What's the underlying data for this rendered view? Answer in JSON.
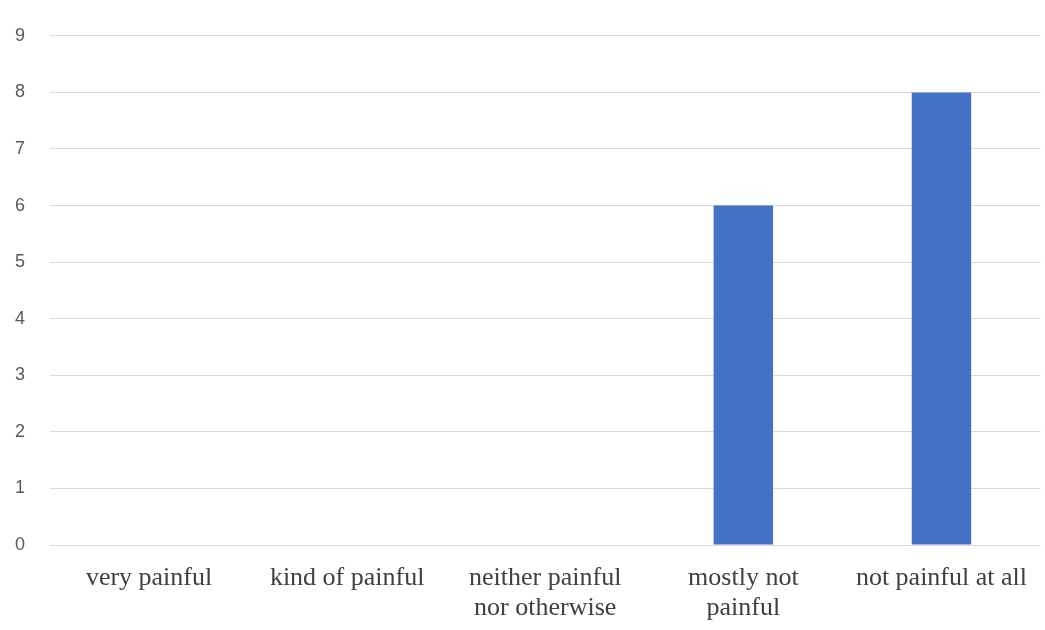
{
  "chart_data": {
    "type": "bar",
    "categories": [
      "very painful",
      "kind of painful",
      "neither painful nor otherwise",
      "mostly not painful",
      "not painful at all"
    ],
    "values": [
      0,
      0,
      0,
      6,
      8
    ],
    "color": "#4472c4",
    "ylim": [
      0,
      9
    ],
    "yticks": [
      0,
      1,
      2,
      3,
      4,
      5,
      6,
      7,
      8,
      9
    ],
    "grid": "y"
  }
}
